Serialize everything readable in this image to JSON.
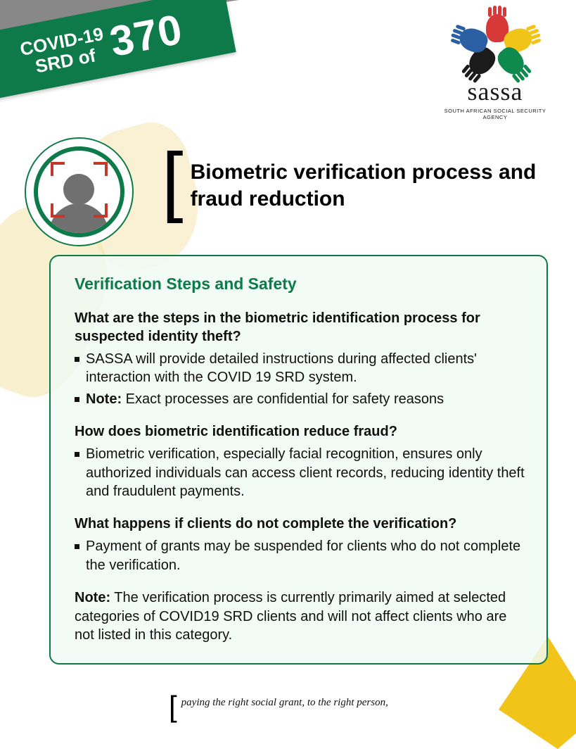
{
  "ribbon": {
    "line1": "COVID-19",
    "line2": "SRD of",
    "amount": "370"
  },
  "logo": {
    "word": "sassa",
    "subtitle": "SOUTH AFRICAN SOCIAL SECURITY AGENCY",
    "hand_colors": {
      "red": "#d73939",
      "yellow": "#f0c419",
      "green": "#0e8a4f",
      "black": "#1b1b1b",
      "blue": "#2b5fa3"
    }
  },
  "title": "Biometric verification process and fraud reduction",
  "card": {
    "heading": "Verification Steps and Safety",
    "q1": {
      "question": "What are the steps in the biometric identification process for suspected identity theft?",
      "bullet1": "SASSA will provide detailed instructions during affected clients' interaction with the COVID 19 SRD system.",
      "bullet2_label": "Note:",
      "bullet2_text": " Exact processes are confidential for safety reasons"
    },
    "q2": {
      "question": "How does biometric identification reduce fraud?",
      "bullet1": "Biometric verification, especially facial recognition, ensures only authorized individuals can access client records, reducing identity theft and fraudulent payments."
    },
    "q3": {
      "question": "What happens if clients do not complete the verification?",
      "bullet1": "Payment of grants may be suspended for clients who do not complete the verification."
    },
    "final_note_label": "Note:",
    "final_note_text": " The verification process is currently primarily aimed at selected categories of COVID19 SRD clients and will not affect clients who are not listed in this category."
  },
  "footer": {
    "line1": "paying the right social grant, to the right person,"
  },
  "colors": {
    "brand_green": "#0e7a4a",
    "accent_red": "#c1392b",
    "gray": "#888888",
    "yellow": "#f0c419",
    "background": "#ffffff",
    "text": "#111111"
  }
}
